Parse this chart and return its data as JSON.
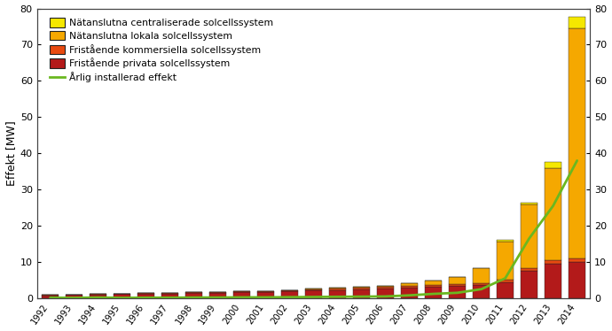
{
  "years": [
    1992,
    1993,
    1994,
    1995,
    1996,
    1997,
    1998,
    1999,
    2000,
    2001,
    2002,
    2003,
    2004,
    2005,
    2006,
    2007,
    2008,
    2009,
    2010,
    2011,
    2012,
    2013,
    2014
  ],
  "fristående_privata": [
    0.8,
    0.9,
    1.0,
    1.1,
    1.2,
    1.3,
    1.4,
    1.5,
    1.6,
    1.7,
    1.9,
    2.1,
    2.3,
    2.5,
    2.7,
    2.9,
    3.1,
    3.3,
    3.6,
    4.5,
    7.5,
    9.5,
    10.0
  ],
  "fristående_kommersiella": [
    0.15,
    0.15,
    0.15,
    0.2,
    0.2,
    0.2,
    0.25,
    0.25,
    0.3,
    0.3,
    0.3,
    0.35,
    0.35,
    0.4,
    0.4,
    0.45,
    0.5,
    0.55,
    0.6,
    0.7,
    0.9,
    1.0,
    1.1
  ],
  "nätanslutna_lokala": [
    0.0,
    0.0,
    0.0,
    0.0,
    0.0,
    0.0,
    0.0,
    0.0,
    0.0,
    0.05,
    0.1,
    0.15,
    0.2,
    0.3,
    0.4,
    0.7,
    1.3,
    2.0,
    4.0,
    10.5,
    17.5,
    25.5,
    63.5
  ],
  "nätanslutna_centraliserade": [
    0.0,
    0.0,
    0.0,
    0.0,
    0.0,
    0.0,
    0.0,
    0.0,
    0.0,
    0.0,
    0.0,
    0.0,
    0.0,
    0.0,
    0.0,
    0.0,
    0.0,
    0.0,
    0.1,
    0.3,
    0.6,
    1.5,
    3.0
  ],
  "annual_installed": [
    0.15,
    0.1,
    0.2,
    0.1,
    0.15,
    0.15,
    0.2,
    0.2,
    0.25,
    0.25,
    0.3,
    0.35,
    0.4,
    0.45,
    0.5,
    0.8,
    1.2,
    1.5,
    2.5,
    5.5,
    16.5,
    25.5,
    38.0
  ],
  "color_privata": "#b31a1a",
  "color_kommersiella": "#e84a10",
  "color_lokala": "#f5a800",
  "color_centraliserade": "#f5e800",
  "color_annual": "#6ab820",
  "color_annual_fill": "#a8d840",
  "ylabel": "Effekt [MW]",
  "ylim": [
    0,
    80
  ],
  "yticks": [
    0,
    10,
    20,
    30,
    40,
    50,
    60,
    70,
    80
  ],
  "legend_centraliserade": "Nätanslutna centraliserade solcellssystem",
  "legend_lokala": "Nätanslutna lokala solcellssystem",
  "legend_kommersiella": "Fristående kommersiella solcellssystem",
  "legend_privata": "Fristående privata solcellssystem",
  "legend_annual": "Årlig installerad effekt",
  "background_color": "#ffffff",
  "bar_edge_color": "#222222",
  "bar_linewidth": 0.3
}
